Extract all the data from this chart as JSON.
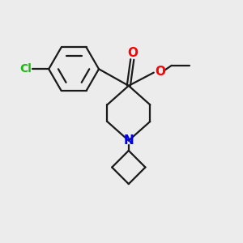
{
  "bg_color": "#ececec",
  "bond_color": "#1a1a1a",
  "cl_color": "#1db813",
  "o_color": "#ff0000",
  "n_color": "#0000ee",
  "lw": 1.6,
  "xlim": [
    0,
    10
  ],
  "ylim": [
    0,
    10
  ]
}
